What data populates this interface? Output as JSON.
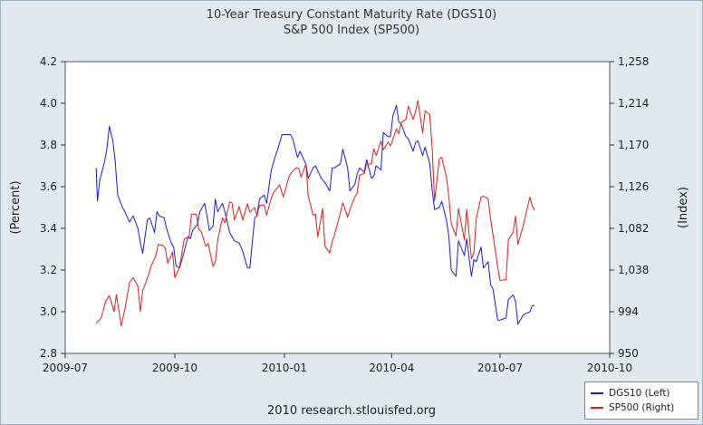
{
  "chart_data": {
    "type": "line",
    "title": "10-Year Treasury Constant Maturity Rate (DGS10)",
    "subtitle": "S&P 500 Index (SP500)",
    "ylabel_left": "(Percent)",
    "ylabel_right": "(Index)",
    "source": "2010 research.stlouisfed.org",
    "x_ticks": [
      "2009-07",
      "2009-10",
      "2010-01",
      "2010-04",
      "2010-07",
      "2010-10"
    ],
    "x_range": [
      "2009-07-01",
      "2010-10-01"
    ],
    "y_left_range": [
      2.8,
      4.2
    ],
    "y_left_ticks": [
      "2.8",
      "3.0",
      "3.2",
      "3.4",
      "3.6",
      "3.8",
      "4.0",
      "4.2"
    ],
    "y_right_range": [
      950,
      1258
    ],
    "y_right_ticks": [
      "950",
      "994",
      "1,038",
      "1,082",
      "1,126",
      "1,170",
      "1,214",
      "1,258"
    ],
    "grid": false,
    "legend_position": "bottom-right",
    "series": [
      {
        "name": "DGS10 (Left)",
        "axis": "left",
        "color": "#1a1ae6",
        "points": [
          [
            "2009-07-27",
            3.69
          ],
          [
            "2009-07-28",
            3.53
          ],
          [
            "2009-07-30",
            3.63
          ],
          [
            "2009-08-03",
            3.72
          ],
          [
            "2009-08-05",
            3.78
          ],
          [
            "2009-08-07",
            3.89
          ],
          [
            "2009-08-10",
            3.82
          ],
          [
            "2009-08-12",
            3.72
          ],
          [
            "2009-08-14",
            3.56
          ],
          [
            "2009-08-18",
            3.5
          ],
          [
            "2009-08-20",
            3.48
          ],
          [
            "2009-08-24",
            3.43
          ],
          [
            "2009-08-27",
            3.46
          ],
          [
            "2009-08-31",
            3.4
          ],
          [
            "2009-09-02",
            3.33
          ],
          [
            "2009-09-04",
            3.28
          ],
          [
            "2009-09-08",
            3.44
          ],
          [
            "2009-09-10",
            3.45
          ],
          [
            "2009-09-14",
            3.38
          ],
          [
            "2009-09-16",
            3.48
          ],
          [
            "2009-09-18",
            3.46
          ],
          [
            "2009-09-22",
            3.45
          ],
          [
            "2009-09-24",
            3.4
          ],
          [
            "2009-09-28",
            3.33
          ],
          [
            "2009-09-30",
            3.31
          ],
          [
            "2009-10-02",
            3.22
          ],
          [
            "2009-10-05",
            3.21
          ],
          [
            "2009-10-08",
            3.27
          ],
          [
            "2009-10-12",
            3.36
          ],
          [
            "2009-10-14",
            3.35
          ],
          [
            "2009-10-16",
            3.39
          ],
          [
            "2009-10-20",
            3.42
          ],
          [
            "2009-10-22",
            3.48
          ],
          [
            "2009-10-26",
            3.52
          ],
          [
            "2009-10-28",
            3.46
          ],
          [
            "2009-10-30",
            3.39
          ],
          [
            "2009-11-02",
            3.41
          ],
          [
            "2009-11-04",
            3.54
          ],
          [
            "2009-11-06",
            3.48
          ],
          [
            "2009-11-10",
            3.52
          ],
          [
            "2009-11-12",
            3.48
          ],
          [
            "2009-11-16",
            3.38
          ],
          [
            "2009-11-18",
            3.36
          ],
          [
            "2009-11-20",
            3.34
          ],
          [
            "2009-11-24",
            3.33
          ],
          [
            "2009-11-27",
            3.29
          ],
          [
            "2009-12-01",
            3.21
          ],
          [
            "2009-12-03",
            3.21
          ],
          [
            "2009-12-07",
            3.45
          ],
          [
            "2009-12-09",
            3.46
          ],
          [
            "2009-12-11",
            3.54
          ],
          [
            "2009-12-15",
            3.56
          ],
          [
            "2009-12-17",
            3.52
          ],
          [
            "2009-12-21",
            3.68
          ],
          [
            "2009-12-23",
            3.72
          ],
          [
            "2009-12-28",
            3.81
          ],
          [
            "2009-12-30",
            3.85
          ],
          [
            "2010-01-04",
            3.85
          ],
          [
            "2010-01-06",
            3.85
          ],
          [
            "2010-01-08",
            3.83
          ],
          [
            "2010-01-12",
            3.74
          ],
          [
            "2010-01-14",
            3.77
          ],
          [
            "2010-01-19",
            3.71
          ],
          [
            "2010-01-21",
            3.64
          ],
          [
            "2010-01-25",
            3.69
          ],
          [
            "2010-01-27",
            3.7
          ],
          [
            "2010-02-01",
            3.64
          ],
          [
            "2010-02-04",
            3.62
          ],
          [
            "2010-02-08",
            3.58
          ],
          [
            "2010-02-10",
            3.69
          ],
          [
            "2010-02-12",
            3.69
          ],
          [
            "2010-02-17",
            3.71
          ],
          [
            "2010-02-19",
            3.78
          ],
          [
            "2010-02-23",
            3.69
          ],
          [
            "2010-02-25",
            3.58
          ],
          [
            "2010-03-01",
            3.61
          ],
          [
            "2010-03-03",
            3.66
          ],
          [
            "2010-03-05",
            3.69
          ],
          [
            "2010-03-09",
            3.67
          ],
          [
            "2010-03-11",
            3.73
          ],
          [
            "2010-03-15",
            3.64
          ],
          [
            "2010-03-17",
            3.65
          ],
          [
            "2010-03-19",
            3.7
          ],
          [
            "2010-03-23",
            3.68
          ],
          [
            "2010-03-25",
            3.86
          ],
          [
            "2010-03-29",
            3.84
          ],
          [
            "2010-03-31",
            3.84
          ],
          [
            "2010-04-02",
            3.94
          ],
          [
            "2010-04-05",
            3.99
          ],
          [
            "2010-04-07",
            3.91
          ],
          [
            "2010-04-09",
            3.9
          ],
          [
            "2010-04-13",
            3.84
          ],
          [
            "2010-04-15",
            3.83
          ],
          [
            "2010-04-19",
            3.77
          ],
          [
            "2010-04-21",
            3.81
          ],
          [
            "2010-04-23",
            3.82
          ],
          [
            "2010-04-27",
            3.75
          ],
          [
            "2010-04-29",
            3.79
          ],
          [
            "2010-05-03",
            3.71
          ],
          [
            "2010-05-05",
            3.58
          ],
          [
            "2010-05-07",
            3.49
          ],
          [
            "2010-05-11",
            3.5
          ],
          [
            "2010-05-13",
            3.53
          ],
          [
            "2010-05-17",
            3.44
          ],
          [
            "2010-05-19",
            3.36
          ],
          [
            "2010-05-21",
            3.2
          ],
          [
            "2010-05-25",
            3.17
          ],
          [
            "2010-05-27",
            3.34
          ],
          [
            "2010-06-01",
            3.27
          ],
          [
            "2010-06-03",
            3.35
          ],
          [
            "2010-06-07",
            3.17
          ],
          [
            "2010-06-09",
            3.25
          ],
          [
            "2010-06-11",
            3.24
          ],
          [
            "2010-06-15",
            3.31
          ],
          [
            "2010-06-17",
            3.21
          ],
          [
            "2010-06-21",
            3.24
          ],
          [
            "2010-06-23",
            3.13
          ],
          [
            "2010-06-25",
            3.11
          ],
          [
            "2010-06-29",
            2.96
          ],
          [
            "2010-07-01",
            2.96
          ],
          [
            "2010-07-06",
            2.97
          ],
          [
            "2010-07-08",
            3.06
          ],
          [
            "2010-07-12",
            3.08
          ],
          [
            "2010-07-14",
            3.05
          ],
          [
            "2010-07-16",
            2.94
          ],
          [
            "2010-07-20",
            2.98
          ],
          [
            "2010-07-22",
            2.99
          ],
          [
            "2010-07-26",
            3.0
          ],
          [
            "2010-07-28",
            3.03
          ],
          [
            "2010-07-30",
            3.03
          ]
        ]
      },
      {
        "name": "SP500 (Right)",
        "axis": "right",
        "color": "#e61a1a",
        "points": [
          [
            "2009-07-27",
            982
          ],
          [
            "2009-07-31",
            987
          ],
          [
            "2009-08-04",
            1005
          ],
          [
            "2009-08-07",
            1011
          ],
          [
            "2009-08-11",
            994
          ],
          [
            "2009-08-13",
            1012
          ],
          [
            "2009-08-17",
            979
          ],
          [
            "2009-08-20",
            996
          ],
          [
            "2009-08-24",
            1025
          ],
          [
            "2009-08-27",
            1030
          ],
          [
            "2009-08-31",
            1021
          ],
          [
            "2009-09-02",
            994
          ],
          [
            "2009-09-04",
            1016
          ],
          [
            "2009-09-09",
            1033
          ],
          [
            "2009-09-11",
            1042
          ],
          [
            "2009-09-15",
            1053
          ],
          [
            "2009-09-17",
            1065
          ],
          [
            "2009-09-21",
            1064
          ],
          [
            "2009-09-23",
            1061
          ],
          [
            "2009-09-25",
            1045
          ],
          [
            "2009-09-29",
            1057
          ],
          [
            "2009-10-01",
            1030
          ],
          [
            "2009-10-05",
            1041
          ],
          [
            "2009-10-07",
            1057
          ],
          [
            "2009-10-09",
            1071
          ],
          [
            "2009-10-13",
            1073
          ],
          [
            "2009-10-15",
            1097
          ],
          [
            "2009-10-19",
            1097
          ],
          [
            "2009-10-21",
            1081
          ],
          [
            "2009-10-23",
            1079
          ],
          [
            "2009-10-27",
            1063
          ],
          [
            "2009-10-29",
            1066
          ],
          [
            "2009-11-02",
            1042
          ],
          [
            "2009-11-04",
            1046
          ],
          [
            "2009-11-06",
            1070
          ],
          [
            "2009-11-10",
            1093
          ],
          [
            "2009-11-12",
            1088
          ],
          [
            "2009-11-16",
            1110
          ],
          [
            "2009-11-18",
            1109
          ],
          [
            "2009-11-20",
            1091
          ],
          [
            "2009-11-24",
            1105
          ],
          [
            "2009-11-27",
            1091
          ],
          [
            "2009-12-01",
            1108
          ],
          [
            "2009-12-03",
            1099
          ],
          [
            "2009-12-07",
            1104
          ],
          [
            "2009-12-09",
            1095
          ],
          [
            "2009-12-11",
            1106
          ],
          [
            "2009-12-15",
            1107
          ],
          [
            "2009-12-17",
            1096
          ],
          [
            "2009-12-21",
            1114
          ],
          [
            "2009-12-23",
            1120
          ],
          [
            "2009-12-28",
            1128
          ],
          [
            "2009-12-31",
            1115
          ],
          [
            "2010-01-05",
            1137
          ],
          [
            "2010-01-07",
            1141
          ],
          [
            "2010-01-11",
            1146
          ],
          [
            "2010-01-13",
            1145
          ],
          [
            "2010-01-15",
            1136
          ],
          [
            "2010-01-19",
            1150
          ],
          [
            "2010-01-21",
            1116
          ],
          [
            "2010-01-25",
            1096
          ],
          [
            "2010-01-27",
            1097
          ],
          [
            "2010-01-29",
            1073
          ],
          [
            "2010-02-02",
            1103
          ],
          [
            "2010-02-04",
            1063
          ],
          [
            "2010-02-08",
            1056
          ],
          [
            "2010-02-10",
            1068
          ],
          [
            "2010-02-12",
            1075
          ],
          [
            "2010-02-17",
            1099
          ],
          [
            "2010-02-19",
            1109
          ],
          [
            "2010-02-23",
            1094
          ],
          [
            "2010-02-25",
            1102
          ],
          [
            "2010-03-01",
            1115
          ],
          [
            "2010-03-03",
            1119
          ],
          [
            "2010-03-05",
            1138
          ],
          [
            "2010-03-09",
            1140
          ],
          [
            "2010-03-11",
            1150
          ],
          [
            "2010-03-15",
            1150
          ],
          [
            "2010-03-17",
            1166
          ],
          [
            "2010-03-19",
            1159
          ],
          [
            "2010-03-23",
            1174
          ],
          [
            "2010-03-25",
            1165
          ],
          [
            "2010-03-29",
            1173
          ],
          [
            "2010-03-31",
            1169
          ],
          [
            "2010-04-05",
            1187
          ],
          [
            "2010-04-07",
            1182
          ],
          [
            "2010-04-09",
            1194
          ],
          [
            "2010-04-13",
            1197
          ],
          [
            "2010-04-15",
            1211
          ],
          [
            "2010-04-19",
            1197
          ],
          [
            "2010-04-21",
            1205
          ],
          [
            "2010-04-23",
            1217
          ],
          [
            "2010-04-27",
            1183
          ],
          [
            "2010-04-29",
            1206
          ],
          [
            "2010-05-03",
            1202
          ],
          [
            "2010-05-05",
            1166
          ],
          [
            "2010-05-07",
            1111
          ],
          [
            "2010-05-11",
            1155
          ],
          [
            "2010-05-13",
            1157
          ],
          [
            "2010-05-17",
            1136
          ],
          [
            "2010-05-19",
            1115
          ],
          [
            "2010-05-21",
            1087
          ],
          [
            "2010-05-25",
            1074
          ],
          [
            "2010-05-27",
            1103
          ],
          [
            "2010-06-01",
            1070
          ],
          [
            "2010-06-03",
            1102
          ],
          [
            "2010-06-07",
            1050
          ],
          [
            "2010-06-09",
            1056
          ],
          [
            "2010-06-11",
            1092
          ],
          [
            "2010-06-15",
            1115
          ],
          [
            "2010-06-17",
            1116
          ],
          [
            "2010-06-21",
            1113
          ],
          [
            "2010-06-23",
            1092
          ],
          [
            "2010-06-25",
            1076
          ],
          [
            "2010-06-29",
            1041
          ],
          [
            "2010-07-01",
            1027
          ],
          [
            "2010-07-06",
            1028
          ],
          [
            "2010-07-08",
            1070
          ],
          [
            "2010-07-12",
            1078
          ],
          [
            "2010-07-14",
            1095
          ],
          [
            "2010-07-16",
            1065
          ],
          [
            "2010-07-20",
            1083
          ],
          [
            "2010-07-22",
            1093
          ],
          [
            "2010-07-26",
            1115
          ],
          [
            "2010-07-28",
            1106
          ],
          [
            "2010-07-30",
            1101
          ]
        ]
      }
    ]
  }
}
